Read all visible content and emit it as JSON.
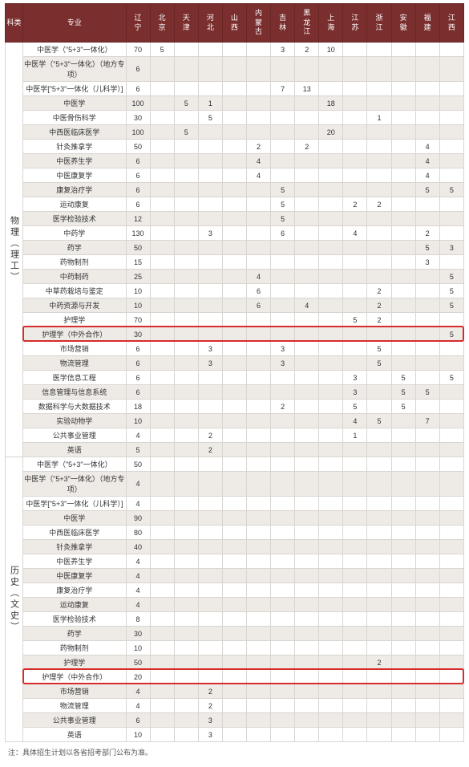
{
  "header": {
    "cat_label": "科类",
    "major_label": "专业",
    "provinces": [
      "辽宁",
      "北京",
      "天津",
      "河北",
      "山西",
      "内蒙古",
      "吉林",
      "黑龙江",
      "上海",
      "江苏",
      "浙江",
      "安徽",
      "福建",
      "江西"
    ]
  },
  "groups": [
    {
      "cat": "物理（理工）",
      "rows": [
        {
          "m": "中医学（\"5+3\"一体化）",
          "v": [
            "70",
            "5",
            "",
            "",
            "",
            "",
            "3",
            "2",
            "10",
            "",
            "",
            "",
            "",
            ""
          ]
        },
        {
          "m": "中医学（\"5+3\"一体化）（地方专项）",
          "v": [
            "6",
            "",
            "",
            "",
            "",
            "",
            "",
            "",
            "",
            "",
            "",
            "",
            "",
            ""
          ]
        },
        {
          "m": "中医学[\"5+3\"一体化（儿科学）]",
          "v": [
            "6",
            "",
            "",
            "",
            "",
            "",
            "7",
            "13",
            "",
            "",
            "",
            "",
            "",
            ""
          ]
        },
        {
          "m": "中医学",
          "v": [
            "100",
            "",
            "5",
            "1",
            "",
            "",
            "",
            "",
            "18",
            "",
            "",
            "",
            "",
            ""
          ]
        },
        {
          "m": "中医骨伤科学",
          "v": [
            "30",
            "",
            "",
            "5",
            "",
            "",
            "",
            "",
            "",
            "",
            "1",
            "",
            "",
            ""
          ]
        },
        {
          "m": "中西医临床医学",
          "v": [
            "100",
            "",
            "5",
            "",
            "",
            "",
            "",
            "",
            "20",
            "",
            "",
            "",
            "",
            ""
          ]
        },
        {
          "m": "针灸推拿学",
          "v": [
            "50",
            "",
            "",
            "",
            "",
            "2",
            "",
            "2",
            "",
            "",
            "",
            "",
            "4",
            ""
          ]
        },
        {
          "m": "中医养生学",
          "v": [
            "6",
            "",
            "",
            "",
            "",
            "4",
            "",
            "",
            "",
            "",
            "",
            "",
            "4",
            ""
          ]
        },
        {
          "m": "中医康复学",
          "v": [
            "6",
            "",
            "",
            "",
            "",
            "4",
            "",
            "",
            "",
            "",
            "",
            "",
            "4",
            ""
          ]
        },
        {
          "m": "康复治疗学",
          "v": [
            "6",
            "",
            "",
            "",
            "",
            "",
            "5",
            "",
            "",
            "",
            "",
            "",
            "5",
            "5"
          ]
        },
        {
          "m": "运动康复",
          "v": [
            "6",
            "",
            "",
            "",
            "",
            "",
            "5",
            "",
            "",
            "2",
            "2",
            "",
            "",
            ""
          ]
        },
        {
          "m": "医学检验技术",
          "v": [
            "12",
            "",
            "",
            "",
            "",
            "",
            "5",
            "",
            "",
            "",
            "",
            "",
            "",
            ""
          ]
        },
        {
          "m": "中药学",
          "v": [
            "130",
            "",
            "",
            "3",
            "",
            "",
            "6",
            "",
            "",
            "4",
            "",
            "",
            "2",
            ""
          ]
        },
        {
          "m": "药学",
          "v": [
            "50",
            "",
            "",
            "",
            "",
            "",
            "",
            "",
            "",
            "",
            "",
            "",
            "5",
            "3"
          ]
        },
        {
          "m": "药物制剂",
          "v": [
            "15",
            "",
            "",
            "",
            "",
            "",
            "",
            "",
            "",
            "",
            "",
            "",
            "3",
            ""
          ]
        },
        {
          "m": "中药制药",
          "v": [
            "25",
            "",
            "",
            "",
            "",
            "4",
            "",
            "",
            "",
            "",
            "",
            "",
            "",
            "5"
          ]
        },
        {
          "m": "中草药栽培与鉴定",
          "v": [
            "10",
            "",
            "",
            "",
            "",
            "6",
            "",
            "",
            "",
            "",
            "2",
            "",
            "",
            "5"
          ]
        },
        {
          "m": "中药资源与开发",
          "v": [
            "10",
            "",
            "",
            "",
            "",
            "6",
            "",
            "4",
            "",
            "",
            "2",
            "",
            "",
            "5"
          ]
        },
        {
          "m": "护理学",
          "v": [
            "70",
            "",
            "",
            "",
            "",
            "",
            "",
            "",
            "",
            "5",
            "2",
            "",
            "",
            ""
          ],
          "hl": false
        },
        {
          "m": "护理学（中外合作）",
          "v": [
            "30",
            "",
            "",
            "",
            "",
            "",
            "",
            "",
            "",
            "",
            "",
            "",
            "",
            "5"
          ],
          "hl": true
        },
        {
          "m": "市场营销",
          "v": [
            "6",
            "",
            "",
            "3",
            "",
            "",
            "3",
            "",
            "",
            "",
            "5",
            "",
            "",
            ""
          ]
        },
        {
          "m": "物流管理",
          "v": [
            "6",
            "",
            "",
            "3",
            "",
            "",
            "3",
            "",
            "",
            "",
            "5",
            "",
            "",
            ""
          ]
        },
        {
          "m": "医学信息工程",
          "v": [
            "6",
            "",
            "",
            "",
            "",
            "",
            "",
            "",
            "",
            "3",
            "",
            "5",
            "",
            "5"
          ]
        },
        {
          "m": "信息管理与信息系统",
          "v": [
            "6",
            "",
            "",
            "",
            "",
            "",
            "",
            "",
            "",
            "3",
            "",
            "5",
            "5",
            ""
          ]
        },
        {
          "m": "数据科学与大数据技术",
          "v": [
            "18",
            "",
            "",
            "",
            "",
            "",
            "2",
            "",
            "",
            "5",
            "",
            "5",
            "",
            ""
          ]
        },
        {
          "m": "实验动物学",
          "v": [
            "10",
            "",
            "",
            "",
            "",
            "",
            "",
            "",
            "",
            "4",
            "5",
            "",
            "7",
            ""
          ]
        },
        {
          "m": "公共事业管理",
          "v": [
            "4",
            "",
            "",
            "2",
            "",
            "",
            "",
            "",
            "",
            "1",
            "",
            "",
            "",
            ""
          ]
        },
        {
          "m": "英语",
          "v": [
            "5",
            "",
            "",
            "2",
            "",
            "",
            "",
            "",
            "",
            "",
            "",
            "",
            "",
            ""
          ]
        }
      ]
    },
    {
      "cat": "历史（文史）",
      "rows": [
        {
          "m": "中医学（\"5+3\"一体化）",
          "v": [
            "50",
            "",
            "",
            "",
            "",
            "",
            "",
            "",
            "",
            "",
            "",
            "",
            "",
            ""
          ]
        },
        {
          "m": "中医学（\"5+3\"一体化）（地方专项）",
          "v": [
            "4",
            "",
            "",
            "",
            "",
            "",
            "",
            "",
            "",
            "",
            "",
            "",
            "",
            ""
          ]
        },
        {
          "m": "中医学[\"5+3\"一体化（儿科学）]",
          "v": [
            "4",
            "",
            "",
            "",
            "",
            "",
            "",
            "",
            "",
            "",
            "",
            "",
            "",
            ""
          ]
        },
        {
          "m": "中医学",
          "v": [
            "90",
            "",
            "",
            "",
            "",
            "",
            "",
            "",
            "",
            "",
            "",
            "",
            "",
            ""
          ]
        },
        {
          "m": "中西医临床医学",
          "v": [
            "80",
            "",
            "",
            "",
            "",
            "",
            "",
            "",
            "",
            "",
            "",
            "",
            "",
            ""
          ]
        },
        {
          "m": "针灸推拿学",
          "v": [
            "40",
            "",
            "",
            "",
            "",
            "",
            "",
            "",
            "",
            "",
            "",
            "",
            "",
            ""
          ]
        },
        {
          "m": "中医养生学",
          "v": [
            "4",
            "",
            "",
            "",
            "",
            "",
            "",
            "",
            "",
            "",
            "",
            "",
            "",
            ""
          ]
        },
        {
          "m": "中医康复学",
          "v": [
            "4",
            "",
            "",
            "",
            "",
            "",
            "",
            "",
            "",
            "",
            "",
            "",
            "",
            ""
          ]
        },
        {
          "m": "康复治疗学",
          "v": [
            "4",
            "",
            "",
            "",
            "",
            "",
            "",
            "",
            "",
            "",
            "",
            "",
            "",
            ""
          ]
        },
        {
          "m": "运动康复",
          "v": [
            "4",
            "",
            "",
            "",
            "",
            "",
            "",
            "",
            "",
            "",
            "",
            "",
            "",
            ""
          ]
        },
        {
          "m": "医学检验技术",
          "v": [
            "8",
            "",
            "",
            "",
            "",
            "",
            "",
            "",
            "",
            "",
            "",
            "",
            "",
            ""
          ]
        },
        {
          "m": "药学",
          "v": [
            "30",
            "",
            "",
            "",
            "",
            "",
            "",
            "",
            "",
            "",
            "",
            "",
            "",
            ""
          ]
        },
        {
          "m": "药物制剂",
          "v": [
            "10",
            "",
            "",
            "",
            "",
            "",
            "",
            "",
            "",
            "",
            "",
            "",
            "",
            ""
          ]
        },
        {
          "m": "护理学",
          "v": [
            "50",
            "",
            "",
            "",
            "",
            "",
            "",
            "",
            "",
            "",
            "2",
            "",
            "",
            ""
          ],
          "hl": false
        },
        {
          "m": "护理学（中外合作）",
          "v": [
            "20",
            "",
            "",
            "",
            "",
            "",
            "",
            "",
            "",
            "",
            "",
            "",
            "",
            ""
          ],
          "hl": true
        },
        {
          "m": "市场营销",
          "v": [
            "4",
            "",
            "",
            "2",
            "",
            "",
            "",
            "",
            "",
            "",
            "",
            "",
            "",
            ""
          ]
        },
        {
          "m": "物流管理",
          "v": [
            "4",
            "",
            "",
            "2",
            "",
            "",
            "",
            "",
            "",
            "",
            "",
            "",
            "",
            ""
          ]
        },
        {
          "m": "公共事业管理",
          "v": [
            "6",
            "",
            "",
            "3",
            "",
            "",
            "",
            "",
            "",
            "",
            "",
            "",
            "",
            ""
          ]
        },
        {
          "m": "英语",
          "v": [
            "10",
            "",
            "",
            "3",
            "",
            "",
            "",
            "",
            "",
            "",
            "",
            "",
            "",
            ""
          ]
        }
      ]
    }
  ],
  "footnote": "注：具体招生计划以各省招考部门公布为准。",
  "colors": {
    "header_bg": "#7a2e2e",
    "header_border": "#6a2525",
    "row_alt": "#eeeae6",
    "border": "#d9d5d1",
    "highlight": "#d62c2c"
  }
}
